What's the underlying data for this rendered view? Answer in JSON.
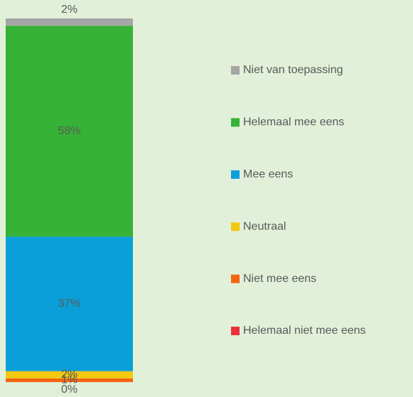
{
  "chart_data": {
    "type": "stacked-bar",
    "series": [
      {
        "name": "Helemaal niet mee eens",
        "color": "#e8313a",
        "values": [
          0
        ],
        "value_labels": [
          "0%"
        ]
      },
      {
        "name": "Niet mee eens",
        "color": "#f4650f",
        "values": [
          1
        ],
        "value_labels": [
          "1%"
        ]
      },
      {
        "name": "Neutraal",
        "color": "#f2c811",
        "values": [
          2
        ],
        "value_labels": [
          "2%"
        ]
      },
      {
        "name": "Mee eens",
        "color": "#0a9fd8",
        "values": [
          37
        ],
        "value_labels": [
          "37%"
        ]
      },
      {
        "name": "Helemaal mee eens",
        "color": "#36b236",
        "values": [
          58
        ],
        "value_labels": [
          "58%"
        ]
      },
      {
        "name": "Niet van toepassing",
        "color": "#a5a5a5",
        "values": [
          2
        ],
        "value_labels": [
          "2%"
        ]
      }
    ],
    "ylim": [
      0,
      100
    ]
  }
}
